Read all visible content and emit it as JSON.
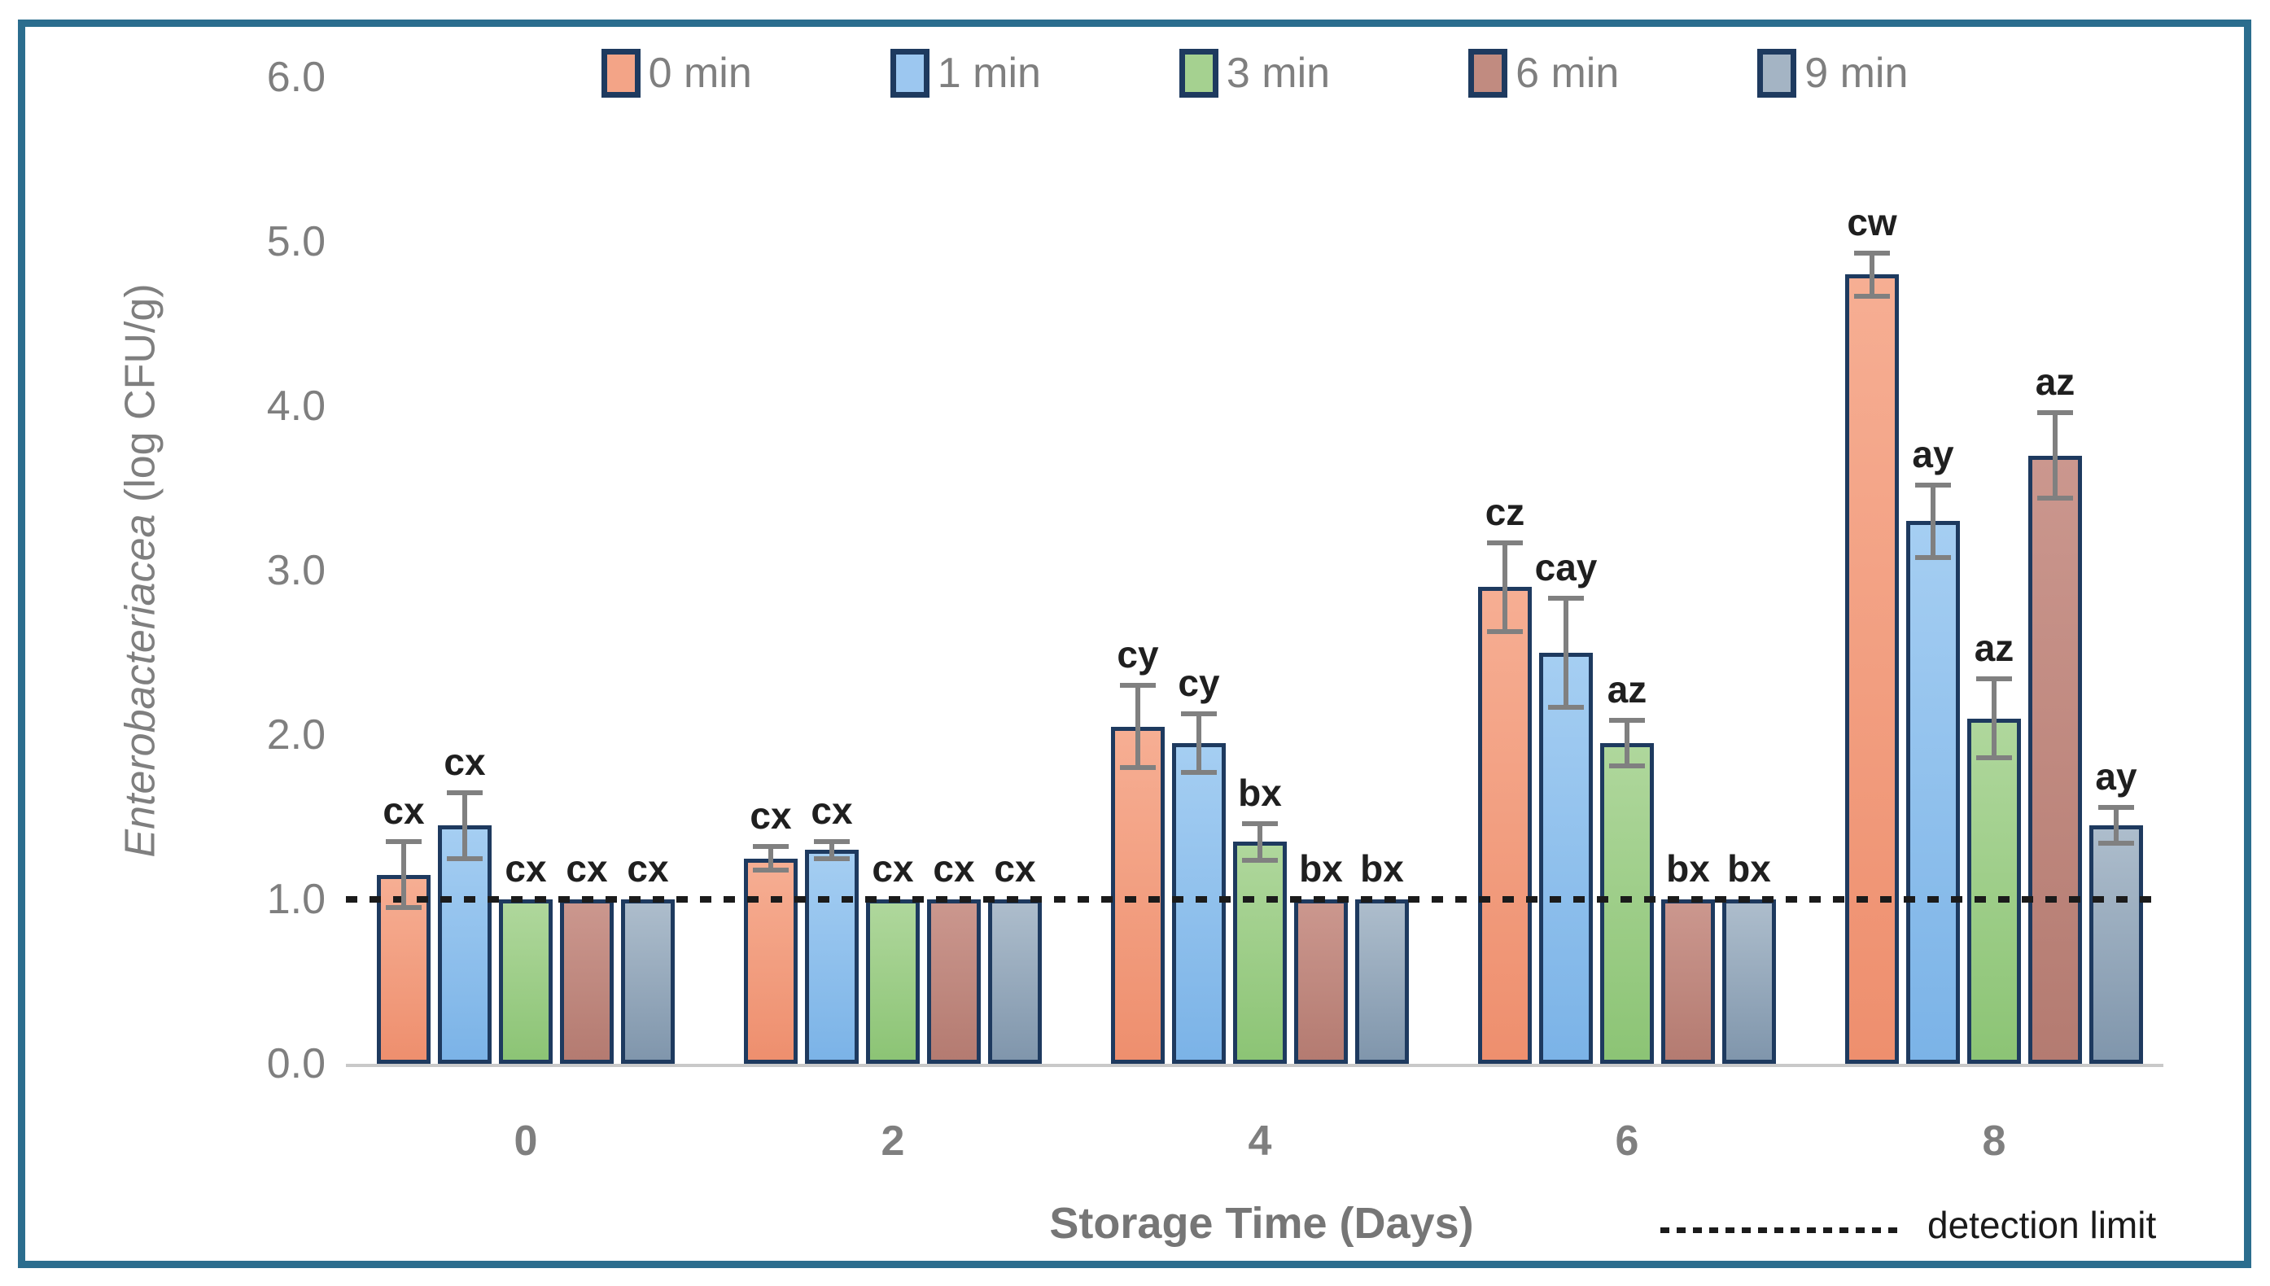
{
  "figure": {
    "frame_color": "#2B6D8E",
    "background": "#ffffff",
    "text_gray": "#7F7F7F",
    "bar_border": "#1E3A5F",
    "error_bar_color": "#808080"
  },
  "y_axis": {
    "title_italic": "Enterobacteriacea",
    "title_regular": " (log CFU/g)",
    "ticks": [
      "6.0",
      "5.0",
      "4.0",
      "3.0",
      "2.0",
      "1.0",
      "0.0"
    ]
  },
  "x_axis": {
    "title": "Storage Time (Days)",
    "ticks": [
      "0",
      "2",
      "4",
      "6",
      "8"
    ]
  },
  "detection_legend": {
    "label": "detection limit"
  },
  "chart_data": {
    "type": "bar",
    "title": "",
    "categories": [
      "0",
      "2",
      "4",
      "6",
      "8"
    ],
    "xlabel": "Storage Time (Days)",
    "ylabel": "Enterobacteriacea (log CFU/g)",
    "ylim": [
      0,
      6
    ],
    "ytick_step": 1.0,
    "grid": false,
    "legend_position": "top",
    "detection_limit": {
      "value": 1.0,
      "label": "detection limit",
      "style": "dotted"
    },
    "series": [
      {
        "name": "0 min",
        "legend_color": "#F3A487",
        "fill_top": "#F6AE93",
        "fill_bottom": "#EE8F6E",
        "values": [
          1.15,
          1.25,
          2.05,
          2.9,
          4.8
        ],
        "errors": [
          0.2,
          0.07,
          0.25,
          0.27,
          0.13
        ],
        "labels": [
          "cx",
          "cx",
          "cy",
          "cz",
          "cw"
        ]
      },
      {
        "name": "1 min",
        "legend_color": "#9CC7F0",
        "fill_top": "#A5CEF2",
        "fill_bottom": "#7BB3E7",
        "values": [
          1.45,
          1.3,
          1.95,
          2.5,
          3.3
        ],
        "errors": [
          0.2,
          0.05,
          0.18,
          0.33,
          0.22
        ],
        "labels": [
          "cx",
          "cx",
          "cy",
          "cay",
          "ay"
        ]
      },
      {
        "name": "3 min",
        "legend_color": "#A5D190",
        "fill_top": "#AFD79C",
        "fill_bottom": "#8CC475",
        "values": [
          1.0,
          1.0,
          1.35,
          1.95,
          2.1
        ],
        "errors": [
          0,
          0,
          0.11,
          0.14,
          0.24
        ],
        "labels": [
          "cx",
          "cx",
          "bx",
          "az",
          "az"
        ]
      },
      {
        "name": "6 min",
        "legend_color": "#C18B80",
        "fill_top": "#CB978E",
        "fill_bottom": "#B47B71",
        "values": [
          1.0,
          1.0,
          1.0,
          1.0,
          3.7
        ],
        "errors": [
          0,
          0,
          0,
          0,
          0.26
        ],
        "labels": [
          "cx",
          "cx",
          "bx",
          "bx",
          "az"
        ]
      },
      {
        "name": "9 min",
        "legend_color": "#A4B4C4",
        "fill_top": "#ADBDCC",
        "fill_bottom": "#8096AC",
        "values": [
          1.0,
          1.0,
          1.0,
          1.0,
          1.45
        ],
        "errors": [
          0,
          0,
          0,
          0,
          0.11
        ],
        "labels": [
          "cx",
          "cx",
          "bx",
          "bx",
          "ay"
        ]
      }
    ]
  }
}
